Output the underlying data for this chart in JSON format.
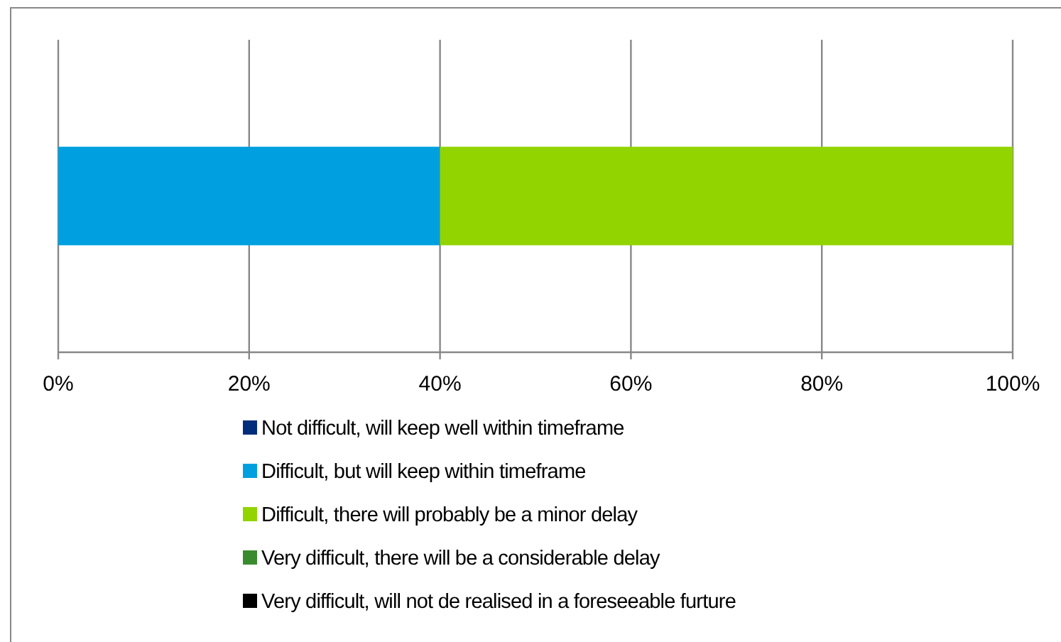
{
  "chart_data": {
    "type": "bar",
    "orientation": "horizontal",
    "stacked": true,
    "categories": [
      null
    ],
    "series": [
      {
        "name": "Not difficult, will keep well within timeframe",
        "color": "#002e7a",
        "values": [
          0
        ]
      },
      {
        "name": "Difficult, but will keep within timeframe",
        "color": "#00a0e0",
        "values": [
          40
        ]
      },
      {
        "name": "Difficult, there will probably be a minor delay",
        "color": "#92d400",
        "values": [
          60
        ]
      },
      {
        "name": "Very difficult, there will be a considerable delay",
        "color": "#3a8b2e",
        "values": [
          0
        ]
      },
      {
        "name": "Very difficult, will not de realised in a foreseeable furture",
        "color": "#000000",
        "values": [
          0
        ]
      }
    ],
    "xlim": [
      0,
      100
    ],
    "xticks": [
      {
        "value": 0,
        "label": "0%"
      },
      {
        "value": 20,
        "label": "20%"
      },
      {
        "value": 40,
        "label": "40%"
      },
      {
        "value": 60,
        "label": "60%"
      },
      {
        "value": 80,
        "label": "80%"
      },
      {
        "value": 100,
        "label": "100%"
      }
    ],
    "grid": "x",
    "legend": "bottom"
  }
}
